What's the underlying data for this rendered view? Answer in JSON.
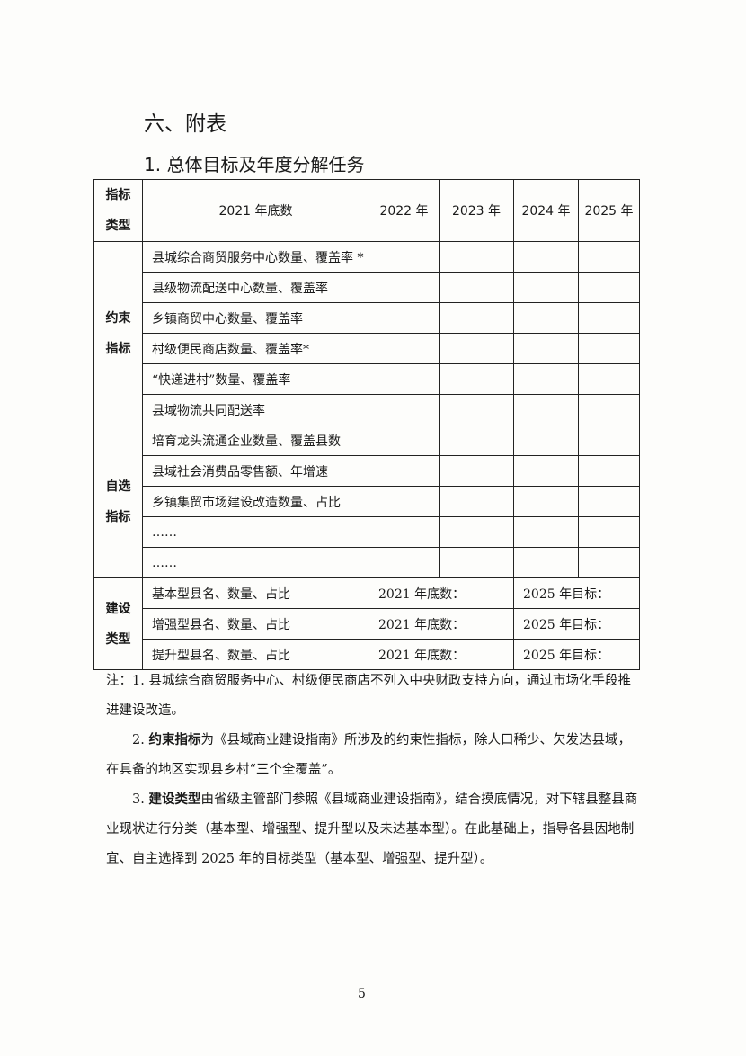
{
  "heading": "六、附表",
  "subheading": "1. 总体目标及年度分解任务",
  "table": {
    "headers": {
      "category_line1": "指标",
      "category_line2": "类型",
      "base": "2021 年底数",
      "y2022": "2022 年",
      "y2023": "2023 年",
      "y2024": "2024 年",
      "y2025": "2025 年"
    },
    "groups": [
      {
        "line1": "约束",
        "line2": "指标",
        "rows": [
          "县城综合商贸服务中心数量、覆盖率 *",
          "县级物流配送中心数量、覆盖率",
          "乡镇商贸中心数量、覆盖率",
          "村级便民商店数量、覆盖率*",
          "“快递进村”数量、覆盖率",
          "县域物流共同配送率"
        ]
      },
      {
        "line1": "自选",
        "line2": "指标",
        "rows": [
          "培育龙头流通企业数量、覆盖县数",
          "县域社会消费品零售额、年增速",
          "乡镇集贸市场建设改造数量、占比",
          "……",
          "……"
        ]
      },
      {
        "line1": "建设",
        "line2": "类型",
        "rows": [
          "基本型县名、数量、占比",
          "增强型县名、数量、占比",
          "提升型县名、数量、占比"
        ],
        "base_label": "2021 年底数：",
        "target_label": "2025 年目标："
      }
    ]
  },
  "notes": {
    "n1": "注：1. 县城综合商贸服务中心、村级便民商店不列入中央财政支持方向，通过市场化手段推进建设改造。",
    "n2_prefix": "2. ",
    "n2_bold": "约束指标",
    "n2_text": "为《县域商业建设指南》所涉及的约束性指标，除人口稀少、欠发达县域，在具备的地区实现县乡村“三个全覆盖”。",
    "n3_prefix": "3. ",
    "n3_bold": "建设类型",
    "n3_text": "由省级主管部门参照《县域商业建设指南》，结合摸底情况，对下辖县整县商业现状进行分类（基本型、增强型、提升型以及未达基本型）。在此基础上，指导各县因地制宜、自主选择到 2025 年的目标类型（基本型、增强型、提升型）。"
  },
  "page_number": "5"
}
